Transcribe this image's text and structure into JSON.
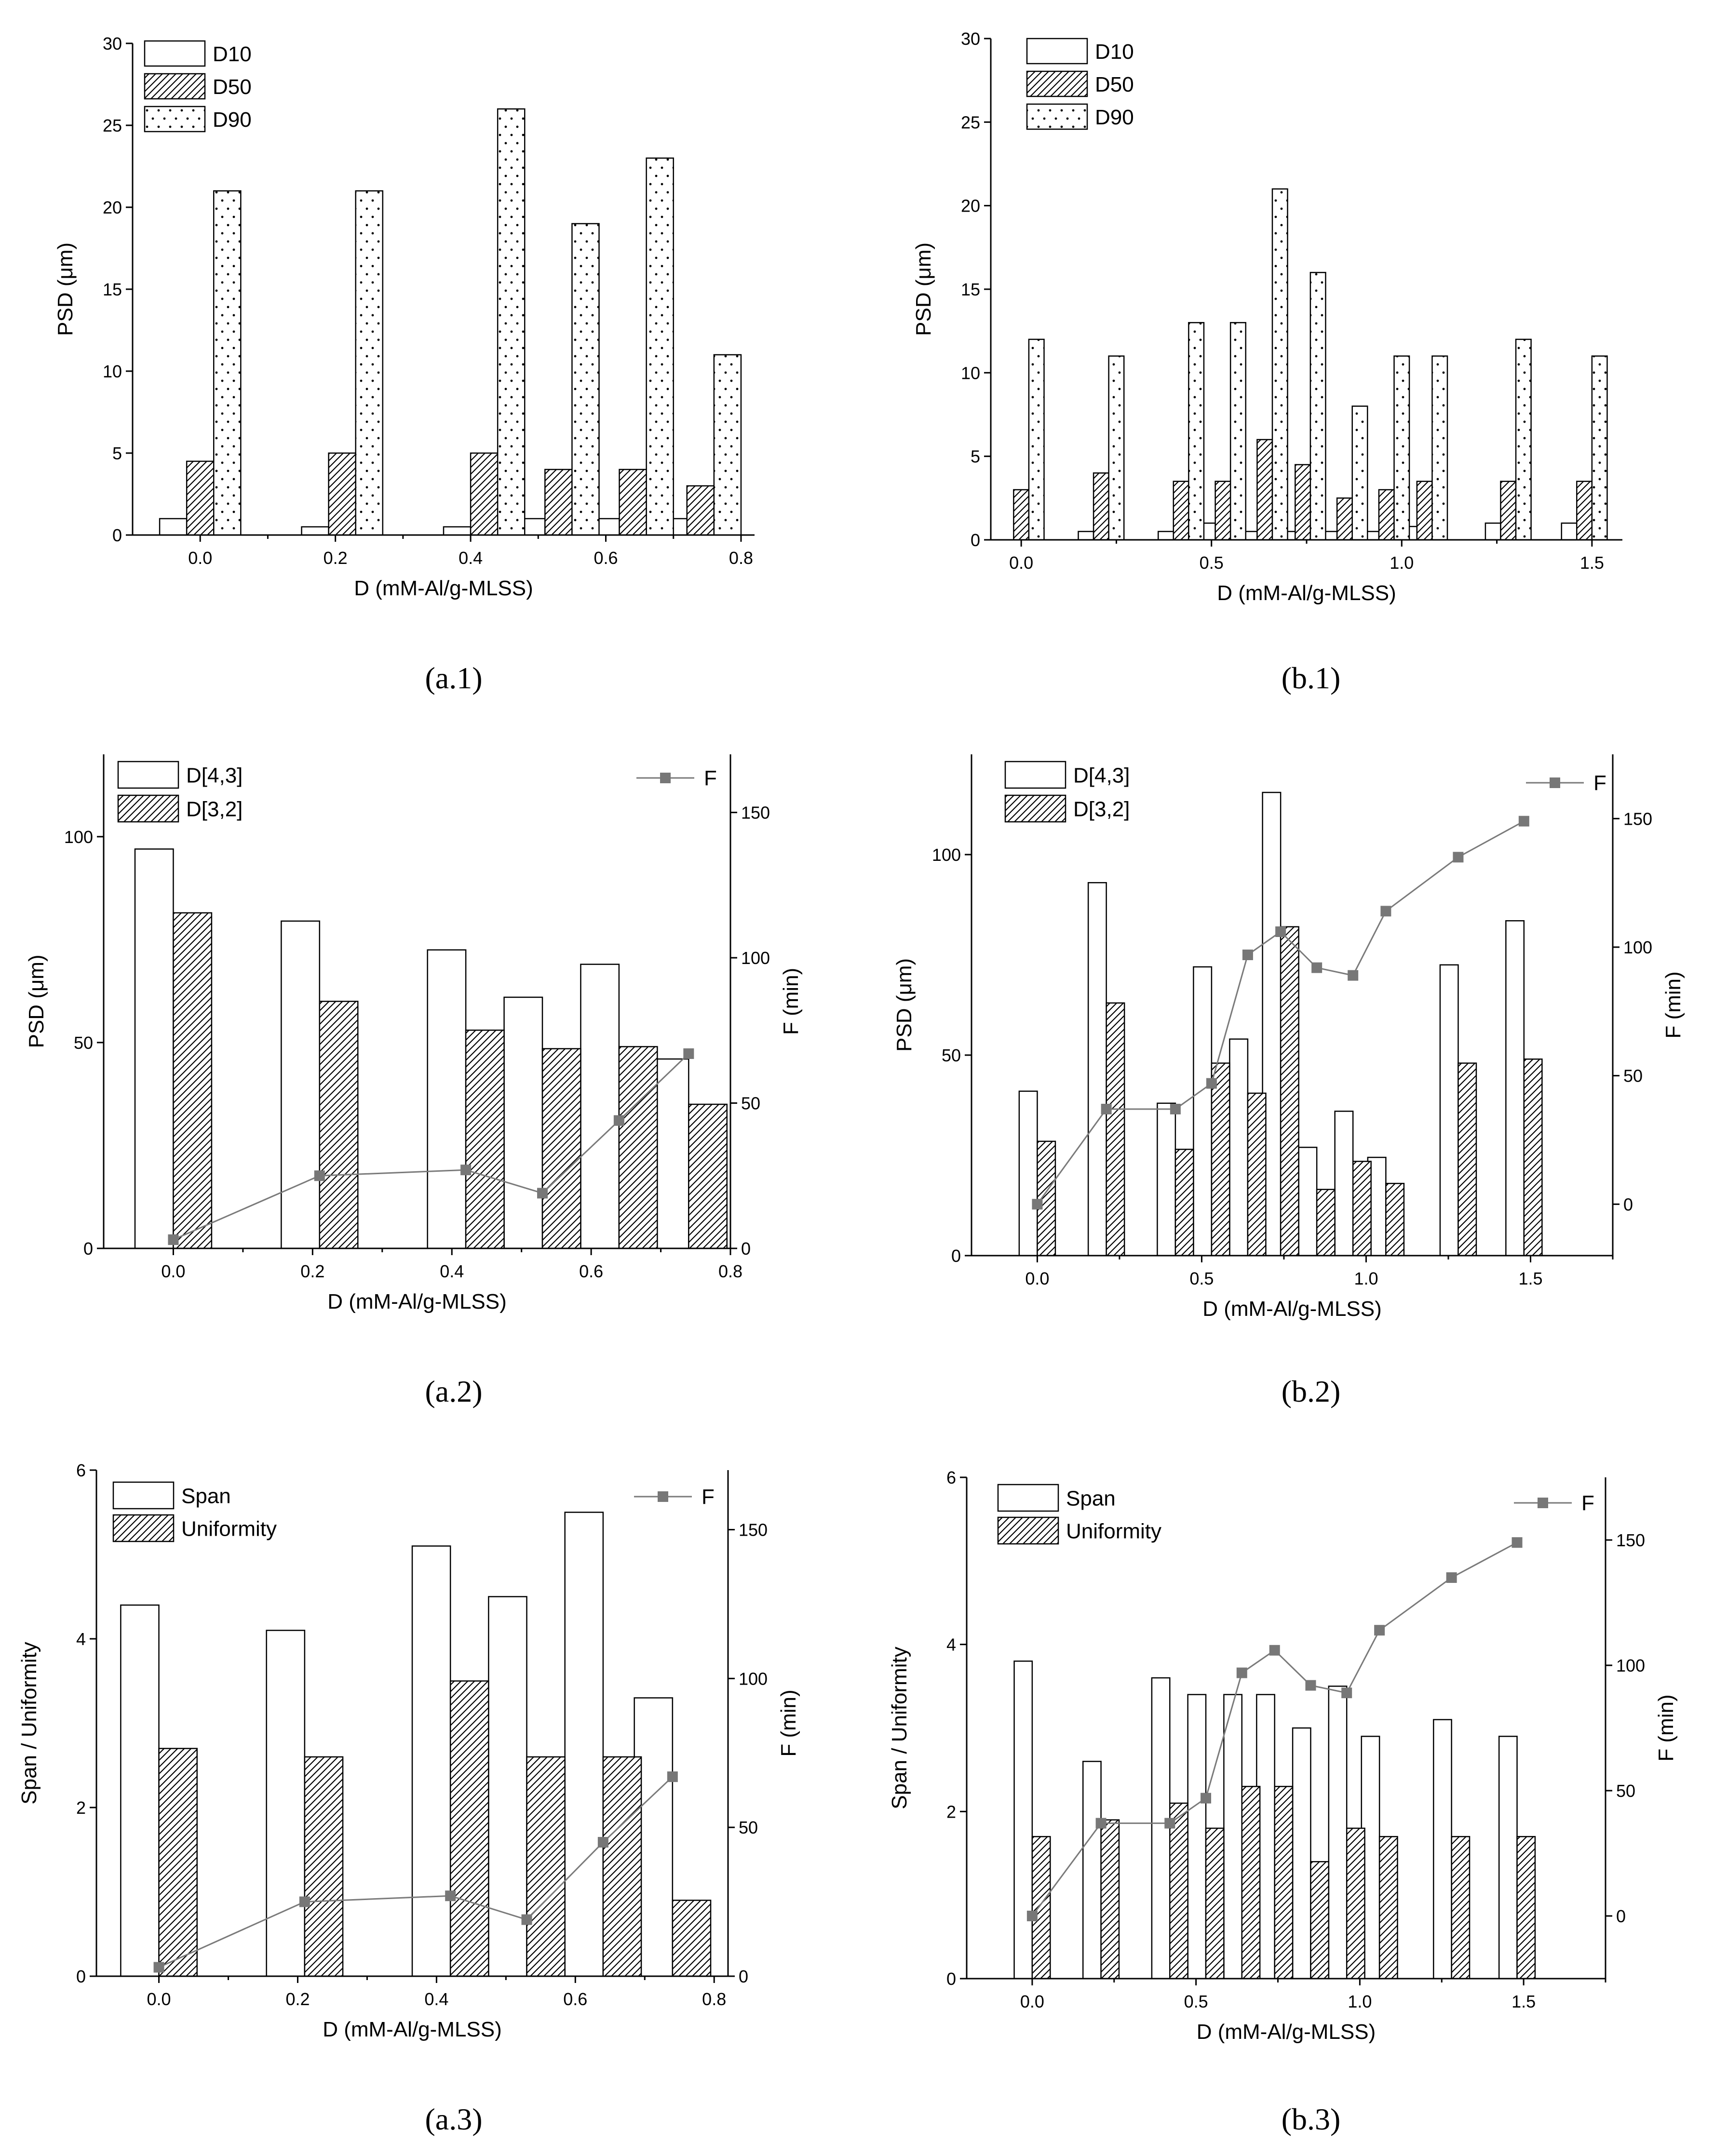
{
  "chart_data": [
    {
      "type": "bar",
      "id": "a1",
      "caption": "(a.1)",
      "xlabel": "D (mM-Al/g-MLSS)",
      "ylabel": "PSD (μm)",
      "xlim": [
        -0.1,
        0.82
      ],
      "ylim": [
        0,
        30
      ],
      "xticks": [
        0.0,
        0.2,
        0.4,
        0.6,
        0.8
      ],
      "xtick_labels": [
        "0.0",
        "0.2",
        "0.4",
        "0.6",
        "0.8"
      ],
      "yticks": [
        0,
        5,
        10,
        15,
        20,
        25,
        30
      ],
      "bar_width": 0.04,
      "x": [
        0.0,
        0.21,
        0.42,
        0.53,
        0.64,
        0.74
      ],
      "series": [
        {
          "name": "D10",
          "pattern": "open",
          "values": [
            1,
            0.5,
            0.5,
            1,
            1,
            1
          ]
        },
        {
          "name": "D50",
          "pattern": "hatch",
          "values": [
            4.5,
            5,
            5,
            4,
            4,
            3
          ]
        },
        {
          "name": "D90",
          "pattern": "dots",
          "values": [
            21,
            21,
            26,
            19,
            23,
            11
          ]
        }
      ]
    },
    {
      "type": "bar",
      "id": "b1",
      "caption": "(b.1)",
      "xlabel": "D (mM-Al/g-MLSS)",
      "ylabel": "PSD (μm)",
      "xlim": [
        -0.08,
        1.58
      ],
      "ylim": [
        0,
        30
      ],
      "xticks": [
        0.0,
        0.5,
        1.0,
        1.5
      ],
      "xtick_labels": [
        "0.0",
        "0.5",
        "1.0",
        "1.5"
      ],
      "yticks": [
        0,
        5,
        10,
        15,
        20,
        25,
        30
      ],
      "bar_width": 0.04,
      "x": [
        0.0,
        0.21,
        0.42,
        0.53,
        0.64,
        0.74,
        0.85,
        0.96,
        1.06,
        1.28,
        1.48
      ],
      "series": [
        {
          "name": "D10",
          "pattern": "open",
          "values": [
            0,
            0.5,
            0.5,
            1,
            0.5,
            0.5,
            0.5,
            0.5,
            0.8,
            1,
            1
          ]
        },
        {
          "name": "D50",
          "pattern": "hatch",
          "values": [
            3,
            4,
            3.5,
            3.5,
            6,
            4.5,
            2.5,
            3,
            3.5,
            3.5,
            3.5
          ]
        },
        {
          "name": "D90",
          "pattern": "dots",
          "values": [
            12,
            11,
            13,
            13,
            21,
            16,
            8,
            11,
            11,
            12,
            11
          ]
        }
      ]
    },
    {
      "type": "bar+line",
      "id": "a2",
      "caption": "(a.2)",
      "xlabel": "D (mM-Al/g-MLSS)",
      "ylabel": "PSD (μm)",
      "y2label": "F (min)",
      "xlim": [
        -0.1,
        0.8
      ],
      "ylim": [
        0,
        120
      ],
      "y2lim": [
        0,
        170
      ],
      "xticks": [
        0.0,
        0.2,
        0.4,
        0.6,
        0.8
      ],
      "xtick_labels": [
        "0.0",
        "0.2",
        "0.4",
        "0.6",
        "0.8"
      ],
      "yticks": [
        0,
        50,
        100
      ],
      "y2ticks": [
        0,
        50,
        100,
        150
      ],
      "bar_width": 0.055,
      "x": [
        0.0,
        0.21,
        0.42,
        0.53,
        0.64,
        0.74
      ],
      "series": [
        {
          "name": "D[4,3]",
          "pattern": "open",
          "values": [
            97,
            79.5,
            72.5,
            61,
            69,
            46
          ]
        },
        {
          "name": "D[3,2]",
          "pattern": "hatch",
          "values": [
            81.5,
            60,
            53,
            48.5,
            49,
            35
          ]
        }
      ],
      "line": {
        "name": "F",
        "x": [
          0.0,
          0.21,
          0.42,
          0.53,
          0.64,
          0.74
        ],
        "values": [
          3,
          25,
          27,
          19,
          44,
          67
        ]
      }
    },
    {
      "type": "bar+line",
      "id": "b2",
      "caption": "(b.2)",
      "xlabel": "D (mM-Al/g-MLSS)",
      "ylabel": "PSD (μm)",
      "y2label": "F (min)",
      "xlim": [
        -0.2,
        1.75
      ],
      "ylim": [
        0,
        125
      ],
      "y2lim": [
        -20,
        175
      ],
      "xticks": [
        0.0,
        0.5,
        1.0,
        1.5
      ],
      "xtick_labels": [
        "0.0",
        "0.5",
        "1.0",
        "1.5"
      ],
      "yticks": [
        0,
        50,
        100
      ],
      "y2ticks": [
        0,
        50,
        100,
        150
      ],
      "bar_width": 0.055,
      "x": [
        0.0,
        0.21,
        0.42,
        0.53,
        0.64,
        0.74,
        0.85,
        0.96,
        1.06,
        1.28,
        1.48
      ],
      "series": [
        {
          "name": "D[4,3]",
          "pattern": "open",
          "values": [
            41,
            93,
            38,
            72,
            54,
            115.5,
            27,
            36,
            24.5,
            72.5,
            83.5
          ]
        },
        {
          "name": "D[3,2]",
          "pattern": "hatch",
          "values": [
            28.5,
            63,
            26.5,
            48,
            40.5,
            82,
            16.5,
            23.5,
            18,
            48,
            49
          ]
        }
      ],
      "line": {
        "name": "F",
        "x": [
          0.0,
          0.21,
          0.42,
          0.53,
          0.64,
          0.74,
          0.85,
          0.96,
          1.06,
          1.28,
          1.48
        ],
        "values": [
          0,
          37,
          37,
          47,
          97,
          106,
          92,
          89,
          114,
          135,
          149
        ]
      }
    },
    {
      "type": "bar+line",
      "id": "a3",
      "caption": "(a.3)",
      "xlabel": "D (mM-Al/g-MLSS)",
      "ylabel": "Span / Uniformity",
      "y2label": "F (min)",
      "xlim": [
        -0.09,
        0.82
      ],
      "ylim": [
        0,
        6
      ],
      "y2lim": [
        0,
        170
      ],
      "xticks": [
        0.0,
        0.2,
        0.4,
        0.6,
        0.8
      ],
      "xtick_labels": [
        "0.0",
        "0.2",
        "0.4",
        "0.6",
        "0.8"
      ],
      "yticks": [
        0,
        2,
        4,
        6
      ],
      "y2ticks": [
        0,
        50,
        100,
        150
      ],
      "bar_width": 0.055,
      "x": [
        0.0,
        0.21,
        0.42,
        0.53,
        0.64,
        0.74
      ],
      "series": [
        {
          "name": "Span",
          "pattern": "open",
          "values": [
            4.4,
            4.1,
            5.1,
            4.5,
            5.5,
            3.3
          ]
        },
        {
          "name": "Uniformity",
          "pattern": "hatch",
          "values": [
            2.7,
            2.6,
            3.5,
            2.6,
            2.6,
            0.9
          ]
        }
      ],
      "line": {
        "name": "F",
        "x": [
          0.0,
          0.21,
          0.42,
          0.53,
          0.64,
          0.74
        ],
        "values": [
          3,
          25,
          27,
          19,
          45,
          67
        ]
      }
    },
    {
      "type": "bar+line",
      "id": "b3",
      "caption": "(b.3)",
      "xlabel": "D (mM-Al/g-MLSS)",
      "ylabel": "Span / Uniformity",
      "y2label": "F (min)",
      "xlim": [
        -0.2,
        1.75
      ],
      "ylim": [
        0,
        6
      ],
      "y2lim": [
        -25,
        175
      ],
      "xticks": [
        0.0,
        0.5,
        1.0,
        1.5
      ],
      "xtick_labels": [
        "0.0",
        "0.5",
        "1.0",
        "1.5"
      ],
      "yticks": [
        0,
        2,
        4,
        6
      ],
      "y2ticks": [
        0,
        50,
        100,
        150
      ],
      "bar_width": 0.055,
      "x": [
        0.0,
        0.21,
        0.42,
        0.53,
        0.64,
        0.74,
        0.85,
        0.96,
        1.06,
        1.28,
        1.48
      ],
      "series": [
        {
          "name": "Span",
          "pattern": "open",
          "values": [
            3.8,
            2.6,
            3.6,
            3.4,
            3.4,
            3.4,
            3.0,
            3.5,
            2.9,
            3.1,
            2.9
          ]
        },
        {
          "name": "Uniformity",
          "pattern": "hatch",
          "values": [
            1.7,
            1.9,
            2.1,
            1.8,
            2.3,
            2.3,
            1.4,
            1.8,
            1.7,
            1.7,
            1.7
          ]
        }
      ],
      "line": {
        "name": "F",
        "x": [
          0.0,
          0.21,
          0.42,
          0.53,
          0.64,
          0.74,
          0.85,
          0.96,
          1.06,
          1.28,
          1.48
        ],
        "values": [
          0,
          37,
          37,
          47,
          97,
          106,
          92,
          89,
          114,
          135,
          149
        ]
      }
    }
  ]
}
